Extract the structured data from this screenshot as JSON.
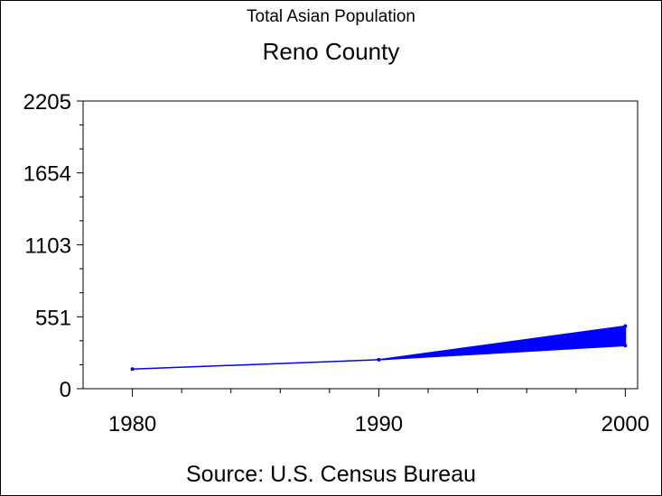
{
  "chart_data": {
    "type": "area",
    "title": "Total Asian Population",
    "subtitle": "Reno County",
    "footnote": "Source: U.S. Census Bureau",
    "x_ticks": [
      1980,
      1990,
      2000
    ],
    "y_ticks": [
      0,
      551,
      1103,
      1654,
      2205
    ],
    "xlim": [
      1978,
      2000.5
    ],
    "ylim": [
      0,
      2205
    ],
    "grid": false,
    "line_color": "#0000ff",
    "fill_color": "#0000ff",
    "series": [
      {
        "x": [
          1980,
          1990,
          2000
        ],
        "lower": [
          150,
          222,
          330
        ],
        "upper": [
          150,
          222,
          480
        ]
      }
    ]
  }
}
